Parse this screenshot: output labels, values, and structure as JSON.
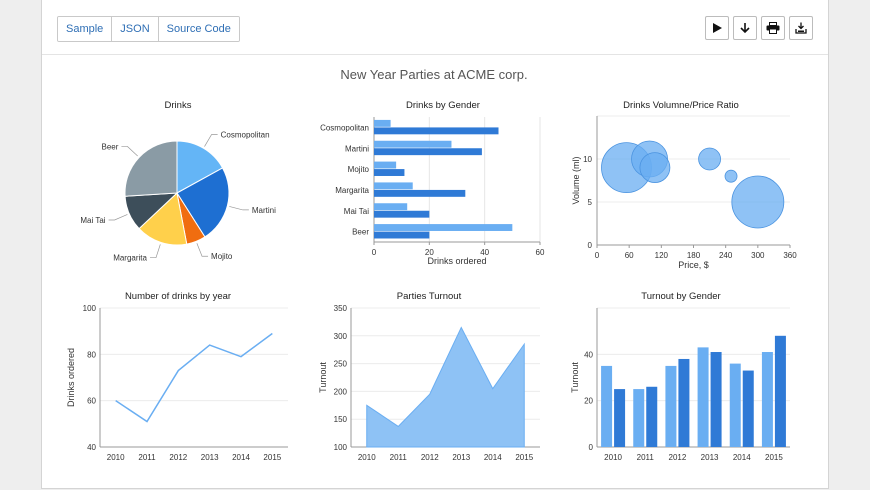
{
  "toolbar": {
    "tabs": [
      {
        "label": "Sample"
      },
      {
        "label": "JSON"
      },
      {
        "label": "Source Code"
      }
    ],
    "actions": [
      {
        "icon": "play-icon"
      },
      {
        "icon": "download-arrow-icon"
      },
      {
        "icon": "print-icon"
      },
      {
        "icon": "save-image-icon"
      }
    ]
  },
  "dashboard": {
    "title": "New Year Parties at ACME corp."
  },
  "colors": {
    "light_blue": "#6aaef2",
    "dark_blue": "#2f7ad6",
    "area_fill": "#8ec2f5",
    "line": "#6aaef2"
  },
  "chart_data": [
    {
      "type": "pie",
      "title": "Drinks",
      "categories": [
        "Cosmopolitan",
        "Martini",
        "Mojito",
        "Margarita",
        "Mai Tai",
        "Beer"
      ],
      "values": [
        17,
        24,
        6,
        16,
        11,
        26
      ],
      "colors": [
        "#64b5f6",
        "#1e6fd2",
        "#f06d10",
        "#ffd04b",
        "#3d4e5a",
        "#8a9ba5"
      ]
    },
    {
      "type": "bar",
      "orientation": "horizontal",
      "title": "Drinks by Gender",
      "categories": [
        "Cosmopolitan",
        "Martini",
        "Mojito",
        "Margarita",
        "Mai Tai",
        "Beer"
      ],
      "series": [
        {
          "values": [
            6,
            28,
            8,
            14,
            12,
            50
          ]
        },
        {
          "values": [
            45,
            39,
            11,
            33,
            20,
            20
          ]
        }
      ],
      "xlabel": "Drinks ordered",
      "xlim": [
        0,
        60
      ],
      "xticks": [
        0,
        20,
        40,
        60
      ]
    },
    {
      "type": "scatter",
      "title": "Drinks Volumne/Price Ratio",
      "points": [
        {
          "x": 55,
          "y": 9,
          "r": 25
        },
        {
          "x": 98,
          "y": 10,
          "r": 18
        },
        {
          "x": 108,
          "y": 9,
          "r": 15
        },
        {
          "x": 210,
          "y": 10,
          "r": 11
        },
        {
          "x": 250,
          "y": 8,
          "r": 6
        },
        {
          "x": 300,
          "y": 5,
          "r": 26
        }
      ],
      "xlabel": "Price, $",
      "ylabel": "Volume (ml)",
      "xlim": [
        0,
        360
      ],
      "xticks": [
        0,
        60,
        120,
        180,
        240,
        300,
        360
      ],
      "ylim": [
        0,
        15
      ],
      "yticks": [
        0,
        5,
        10,
        15
      ],
      "ytick_labels": [
        "0",
        "5",
        "10",
        ""
      ]
    },
    {
      "type": "line",
      "title": "Number of drinks by year",
      "x": [
        "2010",
        "2011",
        "2012",
        "2013",
        "2014",
        "2015"
      ],
      "values": [
        60,
        51,
        73,
        84,
        79,
        89
      ],
      "ylabel": "Drinks ordered",
      "ylim": [
        40,
        100
      ],
      "yticks": [
        40,
        60,
        80,
        100
      ]
    },
    {
      "type": "area",
      "title": "Parties Turnout",
      "x": [
        "2010",
        "2011",
        "2012",
        "2013",
        "2014",
        "2015"
      ],
      "values": [
        175,
        137,
        195,
        315,
        205,
        285
      ],
      "ylabel": "Turnout",
      "ylim": [
        100,
        350
      ],
      "yticks": [
        100,
        150,
        200,
        250,
        300,
        350
      ]
    },
    {
      "type": "bar",
      "title": "Turnout by Gender",
      "categories": [
        "2010",
        "2011",
        "2012",
        "2013",
        "2014",
        "2015"
      ],
      "series": [
        {
          "values": [
            35,
            25,
            35,
            43,
            36,
            41
          ]
        },
        {
          "values": [
            25,
            26,
            38,
            41,
            33,
            48
          ]
        }
      ],
      "ylabel": "Turnout",
      "ylim": [
        0,
        60
      ],
      "yticks": [
        0,
        20,
        40,
        60
      ],
      "ytick_labels": [
        "0",
        "20",
        "40",
        ""
      ]
    }
  ]
}
